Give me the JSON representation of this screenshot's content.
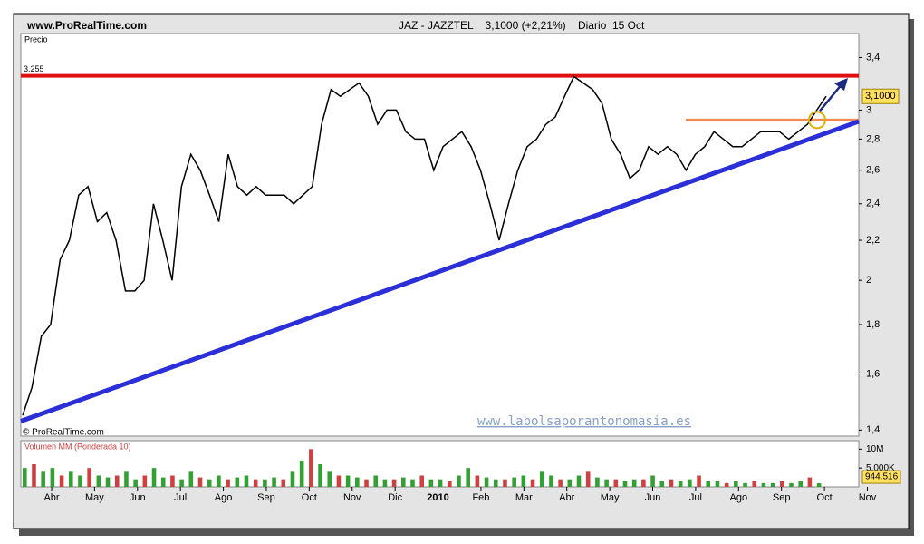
{
  "chart_data": [
    {
      "type": "line",
      "source": "www.ProRealTime.com",
      "title": "JAZ - JAZZTEL    3,1000 (+2,21%)    Diario  15 Oct",
      "y_label": "Precio",
      "copyright": "© ProRealTime.com",
      "watermark": "www.labolsaporantonomasia.es",
      "xticks": [
        "Abr",
        "May",
        "Jun",
        "Jul",
        "Ago",
        "Sep",
        "Oct",
        "Nov",
        "Dic",
        "2010",
        "Feb",
        "Mar",
        "Abr",
        "May",
        "Jun",
        "Jul",
        "Ago",
        "Sep",
        "Oct",
        "Nov"
      ],
      "log_scale": true,
      "ylim": [
        1.38,
        3.6
      ],
      "yticks": [
        {
          "value": 1.4,
          "label": "1,4"
        },
        {
          "value": 1.6,
          "label": "1,6"
        },
        {
          "value": 1.8,
          "label": "1,8"
        },
        2,
        {
          "value": 2.2,
          "label": "2,2"
        },
        {
          "value": 2.4,
          "label": "2,4"
        },
        {
          "value": 2.6,
          "label": "2,6"
        },
        {
          "value": 2.8,
          "label": "2,8"
        },
        3,
        {
          "value": 3.4,
          "label": "3,4"
        }
      ],
      "color": "#000000",
      "values": [
        1.45,
        1.55,
        1.75,
        1.8,
        2.1,
        2.2,
        2.45,
        2.5,
        2.3,
        2.35,
        2.2,
        1.95,
        1.95,
        2.0,
        2.4,
        2.2,
        2.0,
        2.5,
        2.7,
        2.6,
        2.45,
        2.3,
        2.7,
        2.5,
        2.45,
        2.5,
        2.45,
        2.45,
        2.45,
        2.4,
        2.45,
        2.5,
        2.9,
        3.15,
        3.1,
        3.15,
        3.2,
        3.1,
        2.9,
        3.0,
        3.0,
        2.85,
        2.8,
        2.8,
        2.6,
        2.75,
        2.8,
        2.85,
        2.75,
        2.6,
        2.4,
        2.2,
        2.4,
        2.6,
        2.75,
        2.8,
        2.9,
        2.95,
        3.1,
        3.25,
        3.2,
        3.15,
        3.05,
        2.8,
        2.7,
        2.55,
        2.6,
        2.75,
        2.7,
        2.75,
        2.7,
        2.6,
        2.7,
        2.75,
        2.85,
        2.8,
        2.75,
        2.75,
        2.8,
        2.85,
        2.85,
        2.85,
        2.8,
        2.85,
        2.9,
        3.0,
        3.1
      ],
      "last_value": {
        "value": 3.1,
        "label": "3,1000"
      },
      "resistance": {
        "value": 3.255,
        "label": "3.255",
        "color": "#e01010"
      },
      "support": {
        "values": [
          1.43,
          2.92
        ],
        "color": "#2b2fd8"
      },
      "breakout_level": {
        "value": 2.93,
        "color": "#f08a50"
      }
    },
    {
      "type": "bar",
      "title": "Volumen MM (Ponderada 10)",
      "ylim": [
        0,
        12
      ],
      "yticks": [
        {
          "value": 10,
          "label": "10M"
        },
        {
          "value": 5,
          "label": "5.000K"
        }
      ],
      "last_value": {
        "value": 0.944516,
        "label": "944.516"
      },
      "color": "#33a033",
      "values": [
        5,
        6,
        4,
        5,
        3,
        4,
        3,
        5,
        3,
        2.5,
        3,
        4,
        2,
        3,
        5,
        2.5,
        3,
        2,
        4,
        2.5,
        2,
        3,
        2,
        2.5,
        3,
        2,
        2,
        2.5,
        2,
        4,
        7,
        10,
        6,
        4,
        3,
        3,
        2.5,
        2,
        3,
        2,
        2,
        2.5,
        2,
        3,
        2,
        2,
        1.5,
        3,
        5,
        3,
        2.5,
        2,
        2,
        2.5,
        3,
        2,
        4,
        3,
        2,
        2,
        3,
        4,
        2.5,
        2,
        2,
        1.5,
        2,
        2,
        3,
        1.5,
        2,
        1.5,
        2,
        3,
        1.5,
        1.5,
        1,
        1.5,
        1,
        1.5,
        1,
        1,
        1.5,
        1,
        1.5,
        2.5,
        0.944516
      ]
    }
  ]
}
